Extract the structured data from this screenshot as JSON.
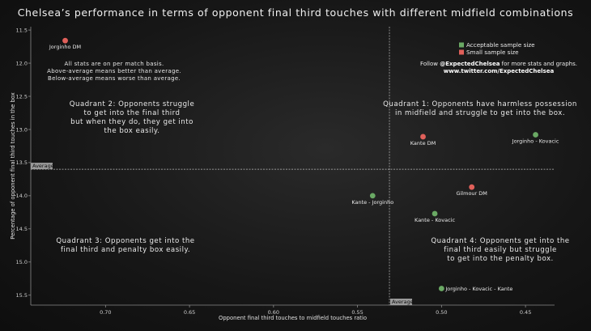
{
  "title": "Chelsea’s performance in terms of opponent final third touches with different midfield combinations",
  "chart_data": {
    "type": "scatter",
    "xlabel": "Opponent final third touches to midfield touches ratio",
    "ylabel": "Percentage of opponent final third touches in the box",
    "x_inverted": true,
    "y_inverted": true,
    "xlim": [
      0.7445,
      0.4327
    ],
    "ylim": [
      11.45,
      15.65
    ],
    "x_ticks": [
      0.7,
      0.65,
      0.6,
      0.55,
      0.5,
      0.45
    ],
    "x_tick_labels": [
      "0.70",
      "0.65",
      "0.60",
      "0.55",
      "0.50",
      "0.45"
    ],
    "y_ticks": [
      11.5,
      12.0,
      12.5,
      13.0,
      13.5,
      14.0,
      14.5,
      15.0,
      15.5
    ],
    "y_tick_labels": [
      "11.5",
      "12.0",
      "12.5",
      "13.0",
      "13.5",
      "14.0",
      "14.5",
      "15.0",
      "15.5"
    ],
    "average_x": 0.531,
    "average_y": 13.6,
    "average_label": "Average",
    "grid": false,
    "legend_position": "top-right",
    "series": [
      {
        "name": "Acceptable sample size",
        "color": "#6aa964",
        "points": [
          {
            "label": "Jorginho - Kovacic",
            "x": 0.444,
            "y": 13.08
          },
          {
            "label": "Kante - Jorginho",
            "x": 0.541,
            "y": 14.0
          },
          {
            "label": "Kante - Kovacic",
            "x": 0.504,
            "y": 14.27
          },
          {
            "label": "Jorginho - Kovacic - Kante",
            "x": 0.5,
            "y": 15.4
          }
        ]
      },
      {
        "name": "Small sample size",
        "color": "#e0605a",
        "points": [
          {
            "label": "Jorginho DM",
            "x": 0.724,
            "y": 11.66
          },
          {
            "label": "Kante DM",
            "x": 0.511,
            "y": 13.11
          },
          {
            "label": "Gilmour DM",
            "x": 0.482,
            "y": 13.87
          }
        ]
      }
    ]
  },
  "notes": {
    "basis": [
      "All stats are on per match basis.",
      "Above-average means better than average.",
      "Below-average means worse than average."
    ],
    "follow_prefix": "Follow ",
    "follow_handle": "@ExpectedChelsea",
    "follow_suffix": " for more stats and graphs.",
    "website": "www.twitter.com/ExpectedChelsea"
  },
  "quadrants": {
    "q1": [
      "Quadrant 1: Opponents have harmless possession",
      "in midfield and struggle to get into the box."
    ],
    "q2": [
      "Quadrant 2: Opponents struggle",
      "to get into the final third",
      "but when they do, they get into",
      "the box easily."
    ],
    "q3": [
      "Quadrant 3: Opponents get into the",
      "final third and penalty box easily."
    ],
    "q4": [
      "Quadrant 4: Opponents get into the",
      "final third easily but struggle",
      "to get into the penalty box."
    ]
  }
}
